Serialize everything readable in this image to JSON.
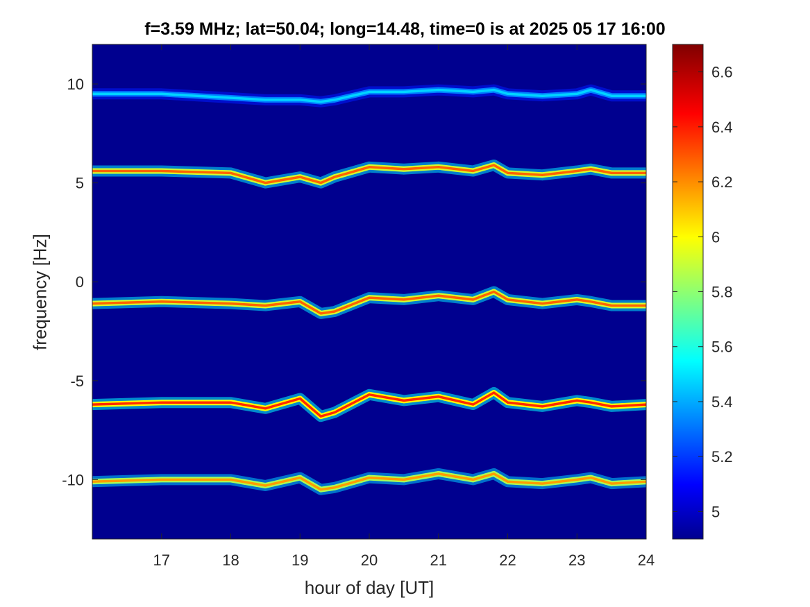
{
  "chart_data": {
    "type": "heatmap",
    "title": "f=3.59 MHz;  lat=50.04; long=14.48, time=0 is at 2025 05 17 16:00",
    "xlabel": "hour of day [UT]",
    "ylabel": "frequency [Hz]",
    "xlim": [
      16,
      24
    ],
    "ylim": [
      -13,
      12
    ],
    "x_ticks": [
      "17",
      "18",
      "19",
      "20",
      "21",
      "22",
      "23",
      "24"
    ],
    "y_ticks": [
      "10",
      "5",
      "0",
      "-5",
      "-10"
    ],
    "x_tick_values": [
      17,
      18,
      19,
      20,
      21,
      22,
      23,
      24
    ],
    "y_tick_values": [
      10,
      5,
      0,
      -5,
      -10
    ],
    "colorbar": {
      "range": [
        4.9,
        6.7
      ],
      "ticks": [
        "6.6",
        "6.4",
        "6.2",
        "6",
        "5.8",
        "5.6",
        "5.4",
        "5.2",
        "5"
      ],
      "tick_values": [
        6.6,
        6.4,
        6.2,
        6.0,
        5.8,
        5.6,
        5.4,
        5.2,
        5.0
      ],
      "colormap": "jet"
    },
    "background_color": "#00008f",
    "traces": [
      {
        "hours": [
          16,
          17,
          18,
          18.5,
          19,
          19.3,
          19.5,
          20,
          20.5,
          21,
          21.5,
          21.8,
          22,
          22.5,
          23,
          23.2,
          23.5,
          24
        ],
        "freq": [
          9.5,
          9.5,
          9.3,
          9.2,
          9.2,
          9.1,
          9.2,
          9.6,
          9.6,
          9.7,
          9.6,
          9.7,
          9.5,
          9.4,
          9.5,
          9.7,
          9.4,
          9.4
        ],
        "level": 5.5
      },
      {
        "hours": [
          16,
          17,
          18,
          18.5,
          19,
          19.3,
          19.5,
          20,
          20.5,
          21,
          21.5,
          21.8,
          22,
          22.5,
          23,
          23.2,
          23.5,
          24
        ],
        "freq": [
          5.6,
          5.6,
          5.5,
          5.0,
          5.3,
          5.0,
          5.3,
          5.8,
          5.7,
          5.8,
          5.6,
          5.9,
          5.5,
          5.4,
          5.6,
          5.7,
          5.5,
          5.5
        ],
        "level": 6.3
      },
      {
        "hours": [
          16,
          17,
          18,
          18.5,
          19,
          19.3,
          19.5,
          20,
          20.5,
          21,
          21.5,
          21.8,
          22,
          22.5,
          23,
          23.2,
          23.5,
          24
        ],
        "freq": [
          -1.1,
          -1.0,
          -1.1,
          -1.2,
          -1.0,
          -1.6,
          -1.5,
          -0.8,
          -0.9,
          -0.7,
          -0.9,
          -0.5,
          -0.9,
          -1.1,
          -0.9,
          -1.0,
          -1.2,
          -1.2
        ],
        "level": 6.3
      },
      {
        "hours": [
          16,
          17,
          18,
          18.5,
          19,
          19.3,
          19.5,
          20,
          20.5,
          21,
          21.5,
          21.8,
          22,
          22.5,
          23,
          23.2,
          23.5,
          24
        ],
        "freq": [
          -6.2,
          -6.1,
          -6.1,
          -6.4,
          -5.9,
          -6.8,
          -6.6,
          -5.7,
          -6.0,
          -5.8,
          -6.2,
          -5.6,
          -6.1,
          -6.3,
          -6.0,
          -6.1,
          -6.3,
          -6.2
        ],
        "level": 6.4
      },
      {
        "hours": [
          16,
          17,
          18,
          18.5,
          19,
          19.3,
          19.5,
          20,
          20.5,
          21,
          21.5,
          21.8,
          22,
          22.5,
          23,
          23.2,
          23.5,
          24
        ],
        "freq": [
          -10.1,
          -10.0,
          -10.0,
          -10.3,
          -9.9,
          -10.5,
          -10.4,
          -9.9,
          -10.0,
          -9.7,
          -10.0,
          -9.7,
          -10.1,
          -10.2,
          -10.0,
          -9.9,
          -10.2,
          -10.1
        ],
        "level": 6.2
      }
    ]
  }
}
